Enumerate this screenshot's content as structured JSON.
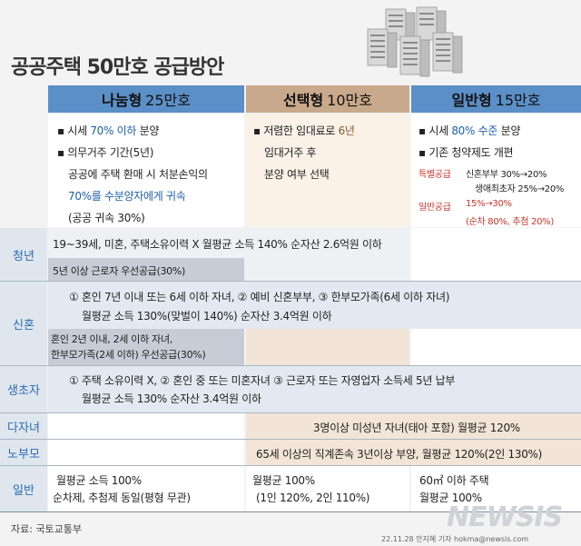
{
  "title": "공공주택 50만호 공급방안",
  "columns": [
    {
      "name": "나눔형",
      "count": "25만호"
    },
    {
      "name": "선택형",
      "count": "10만호"
    },
    {
      "name": "일반형",
      "count": "15만호"
    }
  ],
  "col1": {
    "l1a": "▪ 시세 ",
    "l1b": "70% 이하",
    "l1c": " 분양",
    "l2": "▪ 의무거주 기간(5년)",
    "l3": "공공에 주택 환매 시 처분손익의",
    "l4": "70%를 수분양자에게 귀속",
    "l5": "(공공 귀속 30%)"
  },
  "col2": {
    "l1a": "▪ 저렴한 임대료로 ",
    "l1b": "6년",
    "l2": "임대거주 후",
    "l3": "분양 여부 선택"
  },
  "col3": {
    "l1a": "▪ 시세 ",
    "l1b": "80% 수준",
    "l1c": " 분양",
    "l2": "▪ 기존 청약제도 개편",
    "special_label": "특별공급",
    "special1": "신혼부부 30%→20%",
    "special2": "생애최초자 25%→20%",
    "general_label": "일반공급",
    "general1": "15%→30%",
    "general2": "(순차 80%, 추첨 20%)"
  },
  "rows": {
    "youth": {
      "label": "청년",
      "line1": "19~39세, 미혼, 주택소유이력 X 월평균 소득 140% 순자산 2.6억원 이하",
      "line2": "5년 이상 근로자 우선공급(30%)"
    },
    "newlywed": {
      "label": "신혼",
      "line1": "① 혼인 7년 이내 또는 6세 이하 자녀, ② 예비 신혼부부, ③ 한부모가족(6세 이하 자녀)",
      "line2": "월평균 소득 130%(맞벌이 140%) 순자산 3.4억원 이하",
      "line3": "혼인 2년 이내, 2세 이하 자녀,",
      "line4": "한부모가족(2세 이하) 우선공급(30%)"
    },
    "firsttime": {
      "label": "생초자",
      "line1": "① 주택 소유이력 X, ② 혼인 중 또는 미혼자녀 ③ 근로자 또는 자영업자 소득세 5년 납부",
      "line2": "월평균 소득 130% 순자산 3.4억원 이하"
    },
    "multichild": {
      "label": "다자녀",
      "line1": "3명이상 미성년 자녀(태아 포함) 월평균 120%"
    },
    "elderly": {
      "label": "노부모",
      "line1": "65세 이상의 직계존속 3년이상 부양, 월평균 120%(2인 130%)"
    },
    "general": {
      "label": "일반",
      "c1l1": "월평균 소득 100%",
      "c1l2": "순차제, 추첨제 동일(평형 무관)",
      "c2l1": "월평균 100%",
      "c2l2": "(1인 120%, 2인 110%)",
      "c3l1": "60㎡ 이하 주택",
      "c3l2": "월평균 100%"
    }
  },
  "source": "자료: 국토교통부",
  "credit": "22.11.28 안지혜 기자  hokma@newsis.com",
  "logo": "NEWSIS",
  "colors": {
    "header_blue": "#5b8fc7",
    "header_tan": "#c9a98b",
    "accent_blue": "#1d5ea9",
    "accent_red": "#c8352b"
  }
}
